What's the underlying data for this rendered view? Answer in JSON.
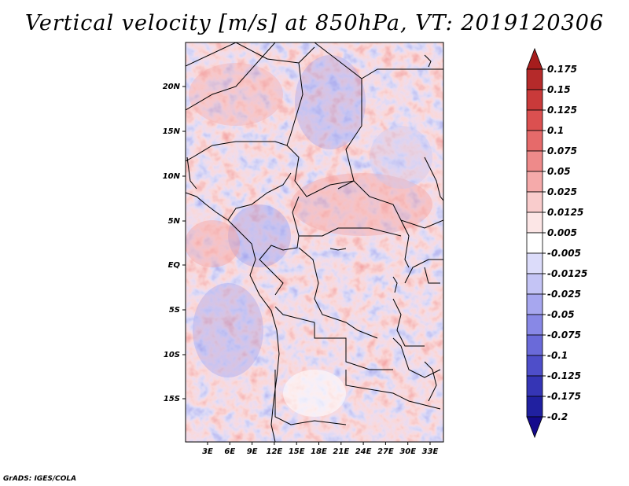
{
  "map": {
    "title": "Vertical velocity [m/s] at 850hPa, VT: 2019120306",
    "credit": "GrADS: IGES/COLA",
    "lat_labels": [
      "20N",
      "15N",
      "10N",
      "5N",
      "EQ",
      "5S",
      "10S",
      "15S"
    ],
    "lon_labels": [
      "3E",
      "6E",
      "9E",
      "12E",
      "15E",
      "18E",
      "21E",
      "24E",
      "27E",
      "30E",
      "33E"
    ],
    "colorbar": {
      "levels": [
        "0.175",
        "0.15",
        "0.125",
        "0.1",
        "0.075",
        "0.05",
        "0.025",
        "0.0125",
        "0.005",
        "-0.005",
        "-0.0125",
        "-0.025",
        "-0.05",
        "-0.075",
        "-0.1",
        "-0.125",
        "-0.175",
        "-0.2"
      ],
      "colors": [
        "#a61d1d",
        "#b52a2a",
        "#c93a3a",
        "#db5050",
        "#e66a6a",
        "#ee8a8a",
        "#f5aaaa",
        "#f9cccc",
        "#fce6e6",
        "#ffffff",
        "#dcdcfa",
        "#c4c4f5",
        "#a7a7ef",
        "#8888e6",
        "#6a6ad9",
        "#4e4ec9",
        "#3535b5",
        "#2020a0",
        "#140a8c"
      ]
    }
  }
}
